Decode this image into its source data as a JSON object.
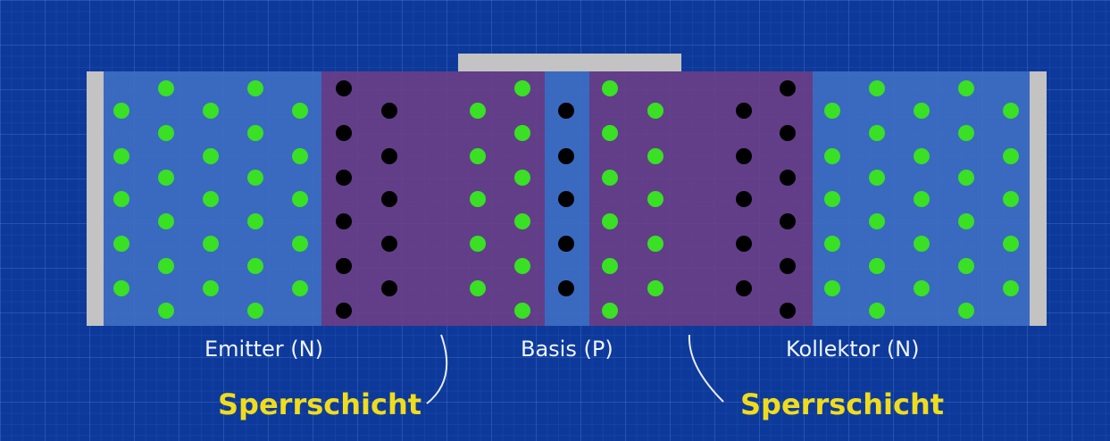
{
  "regions": {
    "emitter": "Emitter (N)",
    "basis": "Basis (P)",
    "kollektor": "Kollektor (N)"
  },
  "depletion_label": "Sperrschicht",
  "colors": {
    "background": "#0d3a9a",
    "n_region": "#3f6fc4",
    "depletion_zone": "#6c3f86",
    "contact": "#c3c3c3",
    "electron": "#39e024",
    "hole": "#000000",
    "region_label": "#eef3ff",
    "depletion_label": "#f0dc1c"
  }
}
